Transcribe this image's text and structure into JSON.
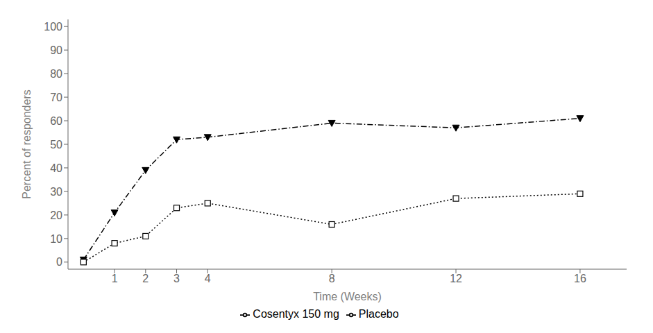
{
  "chart_data": {
    "type": "line",
    "x": [
      0,
      1,
      2,
      3,
      4,
      8,
      12,
      16
    ],
    "series": [
      {
        "name": "Cosentyx 150 mg",
        "color": "#000000",
        "values": [
          1,
          21,
          39,
          52,
          53,
          59,
          57,
          61
        ],
        "marker": "triangle-down",
        "line_style": "dashdot"
      },
      {
        "name": "Placebo",
        "color": "#000000",
        "values": [
          0,
          8,
          11,
          23,
          25,
          16,
          27,
          29
        ],
        "marker": "square-open",
        "line_style": "dotted"
      }
    ],
    "xlabel": "Time (Weeks)",
    "ylabel": "Percent of responders",
    "xlim": [
      -0.5,
      17.5
    ],
    "ylim": [
      -3,
      103
    ],
    "xticks": [
      1,
      2,
      3,
      4,
      8,
      12,
      16
    ],
    "yticks": [
      0,
      10,
      20,
      30,
      40,
      50,
      60,
      70,
      80,
      90,
      100
    ],
    "grid": false,
    "legend": "bottom"
  }
}
